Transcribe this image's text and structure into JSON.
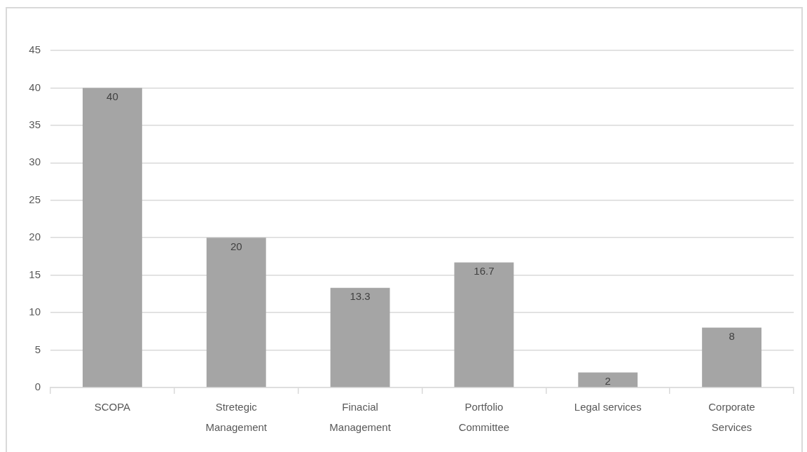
{
  "chart_data": {
    "type": "bar",
    "categories": [
      "SCOPA",
      "Stretegic Management",
      "Finacial Management",
      "Portfolio Committee",
      "Legal services",
      "Corporate Services"
    ],
    "values": [
      40,
      20,
      13.3,
      16.7,
      2,
      8
    ],
    "color": "#a5a5a5",
    "ylim": [
      0,
      45
    ],
    "yticks": [
      0,
      5,
      10,
      15,
      20,
      25,
      30,
      35,
      40,
      45
    ],
    "grid": "y",
    "data_labels": true
  }
}
